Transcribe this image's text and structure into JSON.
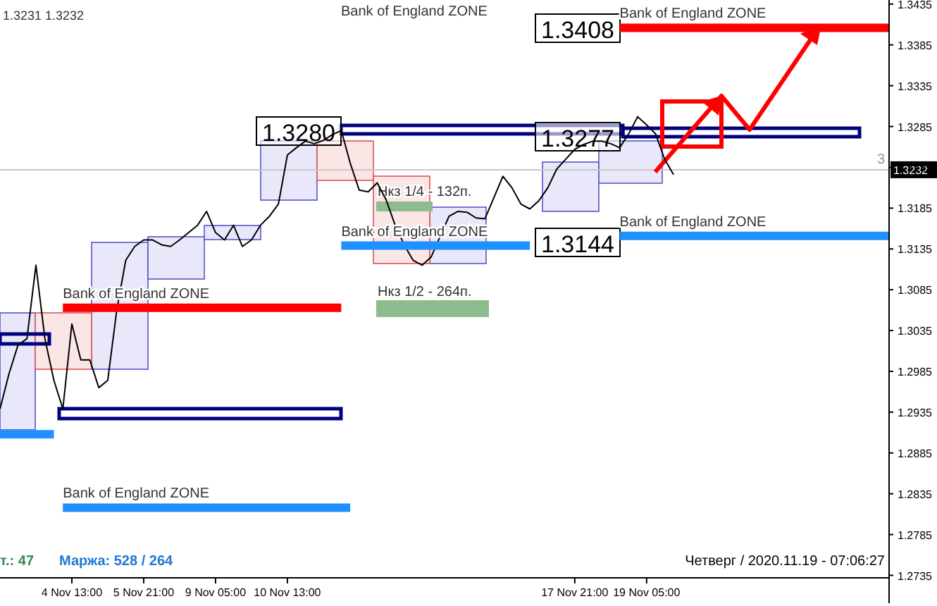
{
  "chart_data": {
    "type": "line",
    "categories": [
      null,
      null,
      null,
      null,
      null,
      null,
      null,
      null,
      "4 Nov 13:00",
      null,
      null,
      null,
      null,
      null,
      null,
      null,
      "5 Nov 21:00",
      null,
      null,
      null,
      null,
      null,
      null,
      null,
      "9 Nov 05:00",
      null,
      null,
      null,
      null,
      null,
      null,
      null,
      "10 Nov 13:00",
      null,
      null,
      null,
      null,
      null,
      null,
      null,
      null,
      null,
      null,
      null,
      null,
      null,
      null,
      null,
      null,
      null,
      null,
      null,
      null,
      null,
      null,
      null,
      null,
      null,
      null,
      null,
      null,
      null,
      null,
      null,
      "17 Nov 21:00",
      null,
      null,
      null,
      null,
      null,
      null,
      null,
      "19 Nov 05:00",
      null,
      null,
      null,
      null,
      null,
      null,
      null,
      null,
      null,
      null,
      null,
      null,
      null,
      null,
      null,
      null,
      null,
      null,
      null,
      null,
      null,
      null,
      null,
      null,
      null,
      null,
      null
    ],
    "ylim": [
      1.2732,
      1.344
    ],
    "yticks": [
      1.2735,
      1.2785,
      1.2835,
      1.2885,
      1.2935,
      1.2985,
      1.3035,
      1.3085,
      1.3135,
      1.3185,
      1.3235,
      1.3285,
      1.3335,
      1.3385,
      1.3435
    ],
    "series": [
      {
        "color": "#000000",
        "values": [
          1.2939,
          1.2982,
          1.3017,
          1.3025,
          1.3115,
          1.3025,
          1.2974,
          1.2939,
          1.3043,
          1.2999,
          1.2999,
          1.2965,
          1.2974,
          1.306,
          1.3121,
          1.3138,
          1.3146,
          1.3146,
          1.314,
          1.3138,
          1.3146,
          1.3155,
          1.3164,
          1.3181,
          1.3155,
          1.3146,
          1.3164,
          1.3138,
          1.3146,
          1.3164,
          1.3175,
          1.319,
          1.325,
          1.3259,
          1.3267,
          1.3264,
          1.3268,
          1.3275,
          1.328,
          1.324,
          1.3207,
          1.3205,
          1.3216,
          1.3195,
          1.3164,
          1.314,
          1.3121,
          1.3115,
          1.3125,
          1.315,
          1.3175,
          1.3181,
          1.318,
          1.3173,
          1.3172,
          1.3198,
          1.3224,
          1.321,
          1.319,
          1.3184,
          1.3194,
          1.321,
          1.3233,
          1.3245,
          1.3257,
          1.3263,
          1.3267,
          1.3267,
          1.3264,
          1.3259,
          1.3276,
          1.3297,
          1.3287,
          1.3276,
          1.3245,
          1.3226,
          null,
          null,
          null,
          null,
          null,
          null,
          null,
          null,
          null,
          null,
          null,
          null,
          null,
          null,
          null,
          null,
          null,
          null,
          null,
          null,
          null,
          null,
          null,
          null
        ]
      },
      {
        "name": "Bank of England ZONE",
        "color": "#ff0000",
        "values": [
          null,
          null,
          null,
          null,
          null,
          null,
          null,
          1.3063,
          1.3063,
          1.3063,
          1.3063,
          1.3063,
          1.3063,
          1.3063,
          1.3063,
          1.3063,
          1.3063,
          1.3063,
          1.3063,
          1.3063,
          1.3063,
          1.3063,
          1.3063,
          1.3063,
          1.3063,
          1.3063,
          1.3063,
          1.3063,
          1.3063,
          1.3063,
          1.3063,
          1.3063,
          1.3063,
          1.3063,
          1.3063,
          1.3063,
          1.3063,
          1.3063,
          1.3063,
          null,
          null,
          null,
          null,
          null,
          null,
          null,
          null,
          null,
          null,
          null,
          null,
          null,
          null,
          null,
          null,
          null,
          null,
          null,
          null,
          null,
          null,
          null,
          null,
          null,
          null,
          null,
          null,
          null,
          null,
          null,
          null,
          null,
          null,
          null,
          null,
          null,
          null,
          null,
          null,
          null,
          null,
          null,
          null,
          null,
          null,
          null,
          null,
          null,
          null,
          null,
          null,
          null,
          null,
          null,
          null,
          null,
          null,
          null,
          null,
          null
        ]
      },
      {
        "name": "Bank of England ZONE",
        "color": "#ff0000",
        "values": [
          null,
          null,
          null,
          null,
          null,
          null,
          null,
          null,
          null,
          null,
          null,
          null,
          null,
          null,
          null,
          null,
          null,
          null,
          null,
          null,
          null,
          null,
          null,
          null,
          null,
          null,
          null,
          null,
          null,
          null,
          null,
          null,
          null,
          null,
          null,
          null,
          null,
          null,
          null,
          null,
          null,
          null,
          null,
          null,
          null,
          null,
          null,
          null,
          null,
          null,
          null,
          null,
          null,
          null,
          null,
          null,
          null,
          null,
          null,
          null,
          null,
          null,
          null,
          null,
          null,
          null,
          null,
          null,
          null,
          1.3406,
          1.3406,
          1.3406,
          1.3406,
          1.3406,
          1.3406,
          1.3406,
          1.3406,
          1.3406,
          1.3406,
          1.3406,
          1.3406,
          1.3406,
          1.3406,
          1.3406,
          1.3406,
          1.3406,
          1.3406,
          1.3406,
          1.3406,
          1.3406,
          1.3406,
          1.3406,
          1.3406,
          1.3406,
          1.3406,
          1.3406,
          1.3406,
          1.3406,
          1.3406,
          1.3406
        ]
      },
      {
        "name": "Bank of England ZONE",
        "color": "#1e90ff",
        "values": [
          null,
          null,
          null,
          null,
          null,
          null,
          null,
          null,
          null,
          null,
          null,
          null,
          null,
          null,
          null,
          null,
          null,
          null,
          null,
          null,
          null,
          null,
          null,
          null,
          null,
          null,
          null,
          null,
          null,
          null,
          null,
          null,
          null,
          null,
          null,
          null,
          null,
          null,
          1.3139,
          1.3139,
          1.3139,
          1.3139,
          1.3139,
          1.3139,
          1.3139,
          1.3139,
          1.3139,
          1.3139,
          1.3139,
          1.3139,
          1.3139,
          1.3139,
          1.3139,
          1.3139,
          1.3139,
          1.3139,
          1.3139,
          1.3139,
          1.3139,
          1.3139,
          null,
          null,
          null,
          null,
          null,
          null,
          null,
          null,
          null,
          null,
          null,
          null,
          null,
          null,
          null,
          null,
          null,
          null,
          null,
          null,
          null,
          null,
          null,
          null,
          null,
          null,
          null,
          null,
          null,
          null,
          null,
          null,
          null,
          null,
          null,
          null,
          null,
          null,
          null,
          null
        ]
      },
      {
        "name": "Bank of England ZONE",
        "color": "#1e90ff",
        "values": [
          null,
          null,
          null,
          null,
          null,
          null,
          null,
          null,
          null,
          null,
          null,
          null,
          null,
          null,
          null,
          null,
          null,
          null,
          null,
          null,
          null,
          null,
          null,
          null,
          null,
          null,
          null,
          null,
          null,
          null,
          null,
          null,
          null,
          null,
          null,
          null,
          null,
          null,
          null,
          null,
          null,
          null,
          null,
          null,
          null,
          null,
          null,
          null,
          null,
          null,
          null,
          null,
          null,
          null,
          null,
          null,
          null,
          null,
          null,
          null,
          null,
          null,
          null,
          null,
          null,
          null,
          null,
          null,
          null,
          1.3151,
          1.3151,
          1.3151,
          1.3151,
          1.3151,
          1.3151,
          1.3151,
          1.3151,
          1.3151,
          1.3151,
          1.3151,
          1.3151,
          1.3151,
          1.3151,
          1.3151,
          1.3151,
          1.3151,
          1.3151,
          1.3151,
          1.3151,
          1.3151,
          1.3151,
          1.3151,
          1.3151,
          1.3151,
          1.3151,
          1.3151,
          1.3151,
          1.3151,
          1.3151,
          1.3151
        ]
      },
      {
        "name": "Bank of England ZONE",
        "color": "#1e90ff",
        "values": [
          null,
          null,
          null,
          null,
          null,
          null,
          null,
          1.2818,
          1.2818,
          1.2818,
          1.2818,
          1.2818,
          1.2818,
          1.2818,
          1.2818,
          1.2818,
          1.2818,
          1.2818,
          1.2818,
          1.2818,
          1.2818,
          1.2818,
          1.2818,
          1.2818,
          1.2818,
          1.2818,
          1.2818,
          1.2818,
          1.2818,
          1.2818,
          1.2818,
          1.2818,
          1.2818,
          1.2818,
          1.2818,
          1.2818,
          1.2818,
          1.2818,
          1.2818,
          1.2818,
          null,
          null,
          null,
          null,
          null,
          null,
          null,
          null,
          null,
          null,
          null,
          null,
          null,
          null,
          null,
          null,
          null,
          null,
          null,
          null,
          null,
          null,
          null,
          null,
          null,
          null,
          null,
          null,
          null,
          null,
          null,
          null,
          null,
          null,
          null,
          null,
          null,
          null,
          null,
          null,
          null,
          null,
          null,
          null,
          null,
          null,
          null,
          null,
          null,
          null,
          null,
          null,
          null,
          null,
          null,
          null,
          null,
          null,
          null,
          null
        ]
      },
      {
        "color": "#1e90ff",
        "values": [
          1.2908,
          1.2908,
          1.2908,
          1.2908,
          1.2908,
          1.2908,
          1.2908,
          null,
          null,
          null,
          null,
          null,
          null,
          null,
          null,
          null,
          null,
          null,
          null,
          null,
          null,
          null,
          null,
          null,
          null,
          null,
          null,
          null,
          null,
          null,
          null,
          null,
          null,
          null,
          null,
          null,
          null,
          null,
          null,
          null,
          null,
          null,
          null,
          null,
          null,
          null,
          null,
          null,
          null,
          null,
          null,
          null,
          null,
          null,
          null,
          null,
          null,
          null,
          null,
          null,
          null,
          null,
          null,
          null,
          null,
          null,
          null,
          null,
          null,
          null,
          null,
          null,
          null,
          null,
          null,
          null,
          null,
          null,
          null,
          null,
          null,
          null,
          null,
          null,
          null,
          null,
          null,
          null,
          null,
          null,
          null,
          null,
          null,
          null,
          null,
          null,
          null,
          null,
          null,
          null
        ]
      }
    ],
    "ref_lines": [
      {
        "axis": "y",
        "value": 1.3232,
        "label": "1.3232",
        "color": "#c8c8c8"
      }
    ],
    "annotations": [
      "1.3280",
      "1.3277",
      "1.3408",
      "1.3144",
      "Bank of England ZONE",
      "Нкз 1/4 - 132п.",
      "Нкз 1/2 - 264п.",
      "1.3231 1.3232",
      "т.: 47",
      "Маржа: 528 / 264",
      "Четверг / 2020.11.19 - 07:06:27",
      "3"
    ]
  }
}
